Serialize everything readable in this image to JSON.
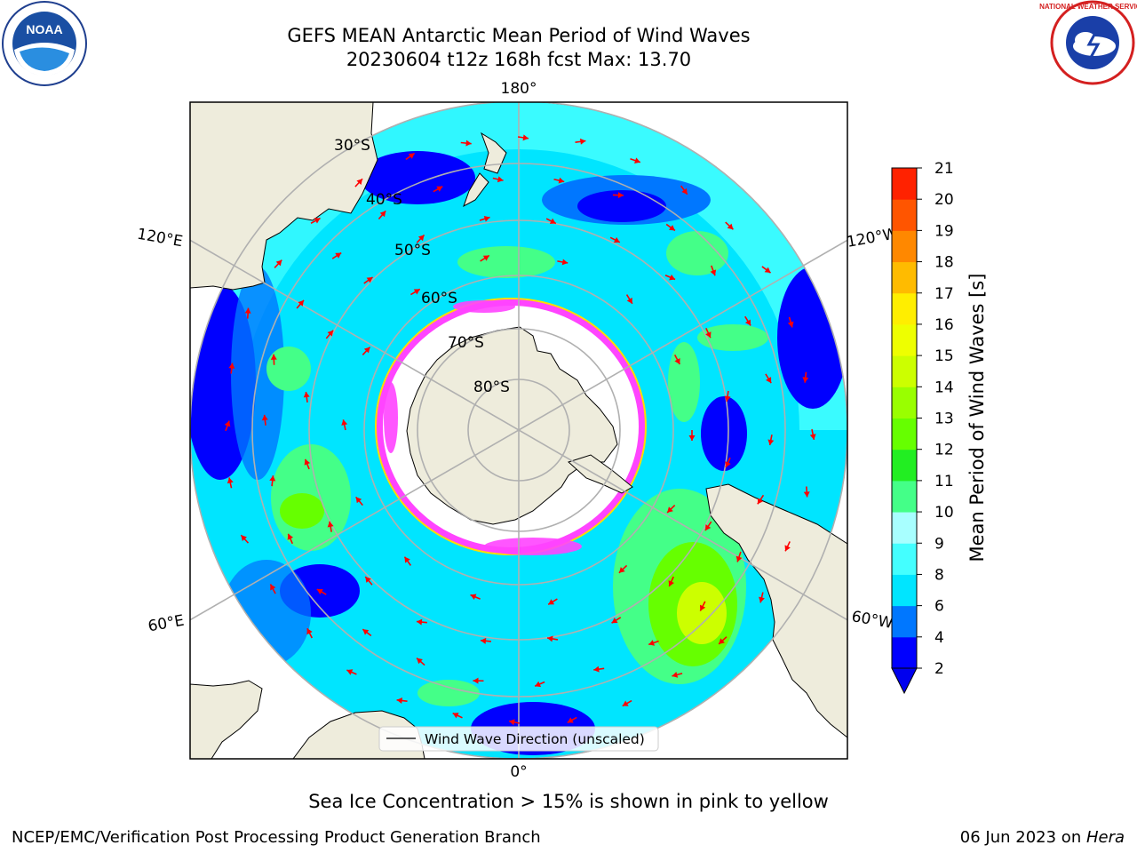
{
  "header": {
    "title_line_1": "GEFS MEAN Antarctic Mean Period of Wind Waves",
    "title_line_2": "20230604 t12z 168h fcst   Max: 13.70"
  },
  "logos": {
    "left": {
      "text": "NOAA",
      "icon": "noaa-logo-icon"
    },
    "right": {
      "text": "NATIONAL WEATHER SERVICE",
      "icon": "nws-logo-icon"
    }
  },
  "map": {
    "projection": "south-polar-stereographic",
    "lon_labels": {
      "top": "180°",
      "bottom": "0°",
      "upper_left": "120°E",
      "lower_left": "60°E",
      "upper_right": "120°W",
      "lower_right": "60°W"
    },
    "lat_labels": [
      "30°S",
      "40°S",
      "50°S",
      "60°S",
      "70°S",
      "80°S"
    ],
    "legend_label": "Wind Wave Direction (unscaled)",
    "arrow_color": "#ff0000",
    "land_color": "#eeecdc",
    "sea_ice_edge_colors": [
      "#ff44ff",
      "#ffdd00"
    ]
  },
  "colorbar": {
    "label": "Mean Period of Wind Waves [s]",
    "ticks": [
      "2",
      "4",
      "6",
      "8",
      "9",
      "10",
      "11",
      "12",
      "13",
      "14",
      "15",
      "16",
      "17",
      "18",
      "19",
      "20",
      "21"
    ],
    "colors": [
      "#0000ff",
      "#0077ff",
      "#00e5ff",
      "#44ffff",
      "#a8ffff",
      "#44ff88",
      "#22ee22",
      "#66ff00",
      "#99ff00",
      "#ccff00",
      "#eeff00",
      "#ffee00",
      "#ffbb00",
      "#ff8800",
      "#ff5500",
      "#ff2200"
    ],
    "extend_color": "#0000ee"
  },
  "caption": "Sea Ice Concentration > 15% is shown in pink to yellow",
  "footer": {
    "left": "NCEP/EMC/Verification Post Processing Product Generation Branch",
    "right_date": "06 Jun 2023 on ",
    "right_host": "Hera"
  }
}
